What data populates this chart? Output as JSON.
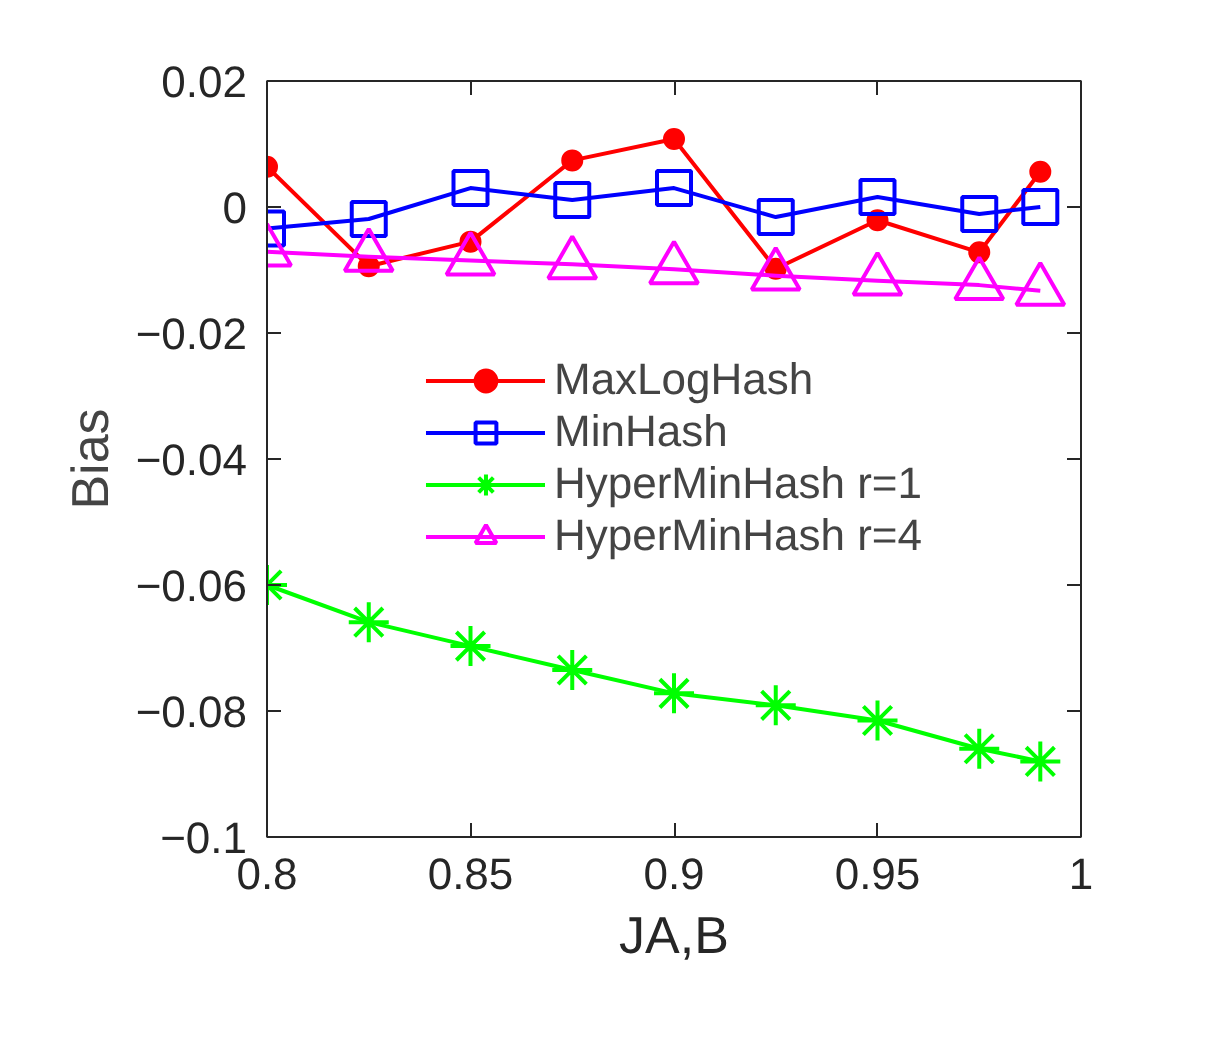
{
  "chart_data": {
    "type": "line",
    "xlabel": "JA,B",
    "ylabel": "Bias",
    "x": [
      0.8,
      0.825,
      0.85,
      0.875,
      0.9,
      0.925,
      0.95,
      0.975,
      0.99
    ],
    "xlim": [
      0.8,
      1
    ],
    "xticks": [
      0.8,
      0.85,
      0.9,
      0.95,
      1
    ],
    "ylim": [
      -0.1,
      0.02
    ],
    "yticks": [
      -0.1,
      -0.08,
      -0.06,
      -0.04,
      -0.02,
      0,
      0.02
    ],
    "grid": false,
    "legend": "center",
    "line_style": "solid",
    "series": [
      {
        "name": "MaxLogHash",
        "color": "#ff0000",
        "marker": "circle",
        "values": [
          0.0064,
          -0.0094,
          -0.0055,
          0.0074,
          0.0108,
          -0.0098,
          -0.0021,
          -0.0072,
          0.0056
        ]
      },
      {
        "name": "MinHash",
        "color": "#0000ff",
        "marker": "square",
        "values": [
          -0.0034,
          -0.0019,
          0.003,
          0.0011,
          0.003,
          -0.0016,
          0.0016,
          -0.0011,
          0.0
        ]
      },
      {
        "name": "HyperMinHash r=1",
        "color": "#00ff00",
        "marker": "cross",
        "values": [
          -0.06,
          -0.0659,
          -0.0697,
          -0.0735,
          -0.0772,
          -0.0791,
          -0.0815,
          -0.086,
          -0.088
        ]
      },
      {
        "name": "HyperMinHash r=4",
        "color": "#ff00ff",
        "marker": "triangle",
        "values": [
          -0.0071,
          -0.0079,
          -0.0085,
          -0.0091,
          -0.0099,
          -0.0109,
          -0.0117,
          -0.0124,
          -0.0133
        ]
      }
    ]
  }
}
